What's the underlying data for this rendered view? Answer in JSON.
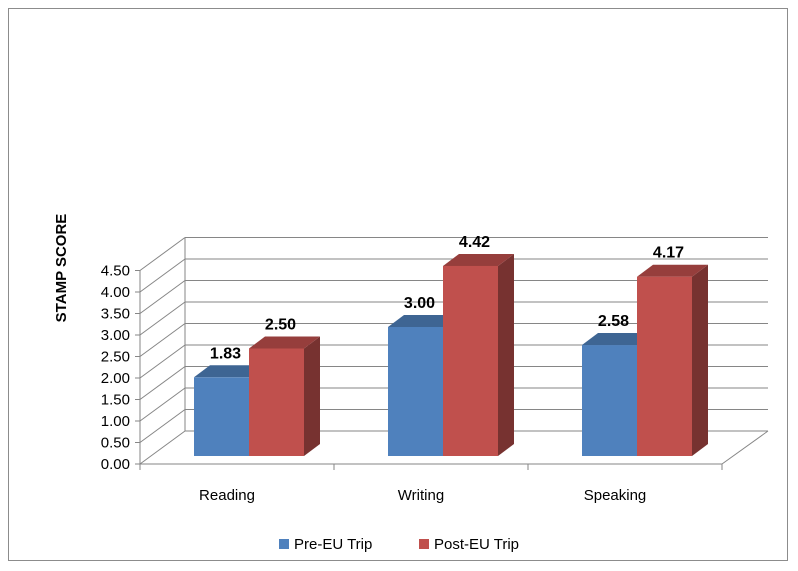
{
  "chart_data": {
    "type": "bar",
    "title": "",
    "xlabel": "",
    "ylabel": "STAMP SCORE",
    "categories": [
      "Reading",
      "Writing",
      "Speaking"
    ],
    "series": [
      {
        "name": "Pre-EU Trip",
        "values": [
          1.83,
          3.0,
          2.58
        ],
        "labels": [
          "1.83",
          "3.00",
          "2.58"
        ],
        "color": "#4F81BD"
      },
      {
        "name": "Post-EU Trip",
        "values": [
          2.5,
          4.42,
          4.17
        ],
        "labels": [
          "2.50",
          "4.42",
          "4.17"
        ],
        "color": "#C0504D"
      }
    ],
    "ylim": [
      0,
      4.5
    ],
    "yticks": [
      "0.00",
      "0.50",
      "1.00",
      "1.50",
      "2.00",
      "2.50",
      "3.00",
      "3.50",
      "4.00",
      "4.50"
    ],
    "grid": true,
    "style": "3d-clustered-column",
    "legend_position": "bottom"
  }
}
